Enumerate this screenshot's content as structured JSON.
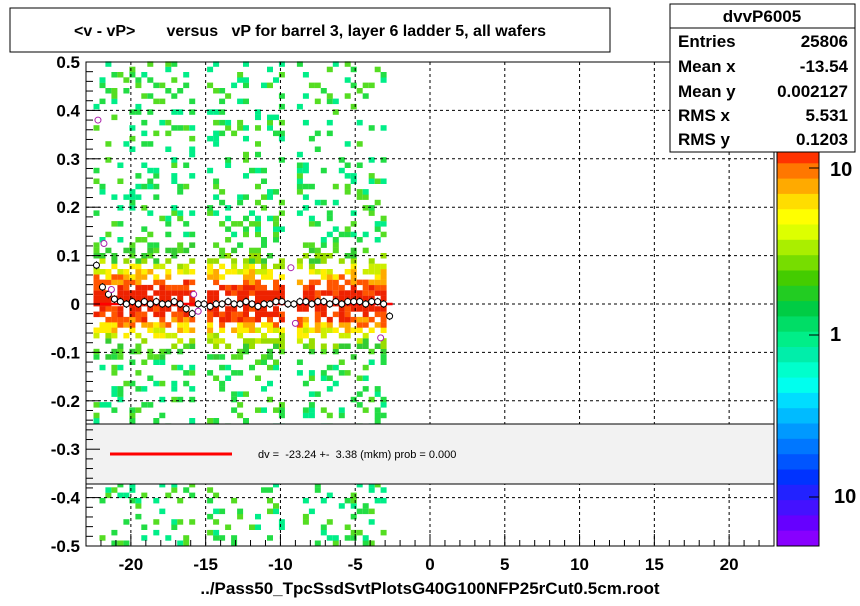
{
  "chart_data": {
    "type": "heatmap",
    "title": "<v - vP>       versus   vP for barrel 3, layer 6 ladder 5, all wafers",
    "xlabel": "../Pass50_TpcSsdSvtPlotsG40G100NFP25rCut0.5cm.root",
    "ylabel": "",
    "xlim": [
      -23,
      23
    ],
    "ylim": [
      -0.5,
      0.5
    ],
    "x_ticks": [
      "-20",
      "-15",
      "-10",
      "-5",
      "0",
      "5",
      "10",
      "15",
      "20"
    ],
    "y_ticks": [
      "-0.5",
      "-0.4",
      "-0.3",
      "-0.2",
      "-0.1",
      "0",
      "0.1",
      "0.2",
      "0.3",
      "0.4",
      "0.5"
    ],
    "grid": true,
    "stats": {
      "name": "dvvP6005",
      "rows": [
        {
          "label": "Entries",
          "value": "25806"
        },
        {
          "label": "Mean x",
          "value": "-13.54"
        },
        {
          "label": "Mean y",
          "value": "0.002127"
        },
        {
          "label": "RMS x",
          "value": "5.531"
        },
        {
          "label": "RMS y",
          "value": "0.1203"
        }
      ]
    },
    "colorbar_labels": [
      "10",
      "1",
      "10"
    ],
    "fit": {
      "legend": "dv =  -23.24 +-  3.38 (mkm) prob = 0.000",
      "x_range": [
        -22.5,
        -2.5
      ],
      "y": 0.0
    },
    "profile_points": {
      "x": [
        -22.3,
        -21.9,
        -21.5,
        -21.1,
        -20.7,
        -20.3,
        -19.9,
        -19.5,
        -19.1,
        -18.7,
        -18.3,
        -17.9,
        -17.5,
        -17.1,
        -16.7,
        -16.3,
        -15.9,
        -15.5,
        -15.1,
        -14.7,
        -14.3,
        -13.9,
        -13.5,
        -13.1,
        -12.7,
        -12.3,
        -11.9,
        -11.5,
        -11.1,
        -10.7,
        -10.3,
        -9.9,
        -9.5,
        -9.1,
        -8.7,
        -8.3,
        -7.9,
        -7.5,
        -7.1,
        -6.7,
        -6.3,
        -5.9,
        -5.5,
        -5.1,
        -4.7,
        -4.3,
        -3.9,
        -3.5,
        -3.1,
        -2.7
      ],
      "y": [
        0.08,
        0.035,
        0.02,
        0.01,
        0.005,
        0.0,
        0.005,
        0.0,
        0.005,
        0.0,
        0.005,
        0.0,
        0.0,
        0.005,
        0.0,
        -0.01,
        -0.02,
        0.0,
        0.0,
        -0.005,
        0.0,
        0.0,
        0.005,
        0.0,
        0.0,
        0.005,
        0.0,
        -0.005,
        0.0,
        0.0,
        0.005,
        0.005,
        0.0,
        0.0,
        0.005,
        0.005,
        0.0,
        0.005,
        0.005,
        0.0,
        0.005,
        0.0,
        0.005,
        0.005,
        0.005,
        0.0,
        0.005,
        0.005,
        0.0,
        -0.025
      ]
    },
    "outlier_points": {
      "x": [
        -22.2,
        -21.8,
        -21.3,
        -15.8,
        -15.5,
        -9.3,
        -9.0,
        -3.3
      ],
      "y": [
        0.38,
        0.125,
        0.03,
        0.02,
        -0.015,
        0.075,
        -0.04,
        -0.07
      ]
    }
  }
}
